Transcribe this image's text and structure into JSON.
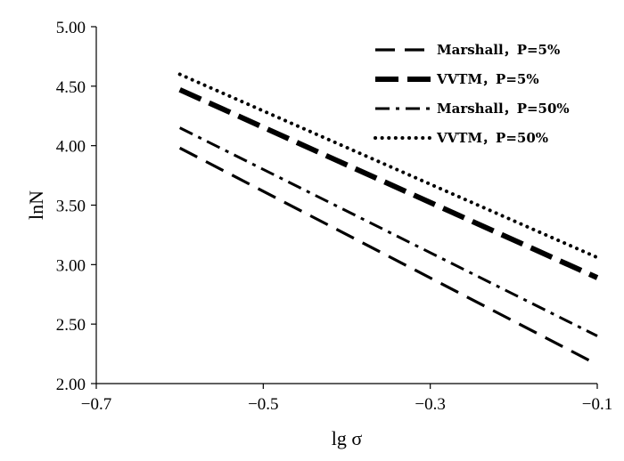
{
  "chart_data": {
    "type": "line",
    "title": "",
    "xlabel": "lg σ",
    "ylabel": "lnN",
    "xlim": [
      -0.7,
      -0.1
    ],
    "ylim": [
      2.0,
      5.0
    ],
    "x_ticks": [
      "−0.7",
      "−0.5",
      "−0.3",
      "−0.1"
    ],
    "y_ticks": [
      "2.00",
      "2.50",
      "3.00",
      "3.50",
      "4.00",
      "4.50",
      "5.00"
    ],
    "grid": false,
    "legend_position": "top-right",
    "series": [
      {
        "name": "Marshall，P=5%",
        "style": "long-dash",
        "x": [
          -0.6,
          -0.1
        ],
        "y": [
          3.98,
          2.16
        ]
      },
      {
        "name": "VVTM，P=5%",
        "style": "thick-dash",
        "x": [
          -0.6,
          -0.1
        ],
        "y": [
          4.47,
          2.89
        ]
      },
      {
        "name": "Marshall，P=50%",
        "style": "dash-dot",
        "x": [
          -0.6,
          -0.1
        ],
        "y": [
          4.15,
          2.4
        ]
      },
      {
        "name": "VVTM，P=50%",
        "style": "dotted",
        "x": [
          -0.6,
          -0.1
        ],
        "y": [
          4.6,
          3.06
        ]
      }
    ]
  }
}
